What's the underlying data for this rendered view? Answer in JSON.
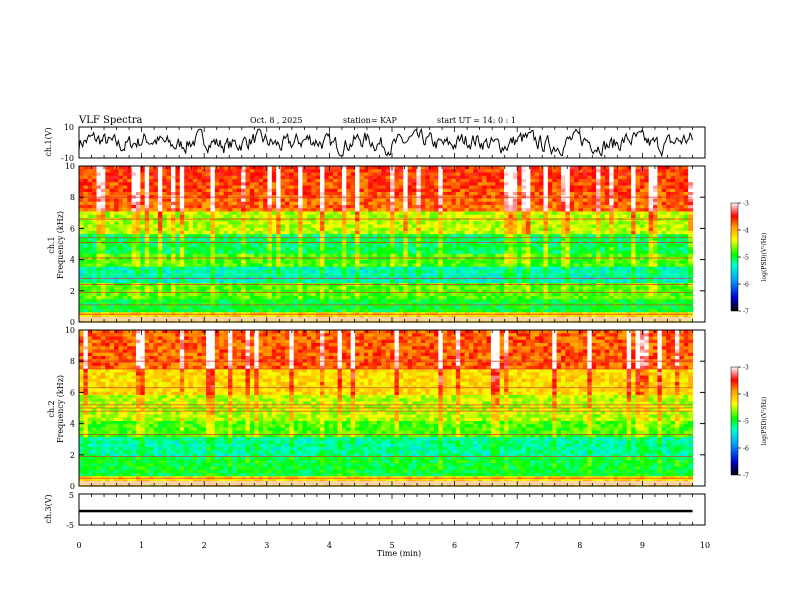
{
  "header": {
    "title": "VLF Spectra",
    "date": "Oct. 8 , 2025",
    "station": "station= KAP",
    "start_time": "start UT = 14: 0 : 1"
  },
  "colors": {
    "background": "#ffffff",
    "trace": "#000000",
    "colormap": [
      "#000000",
      "#0000cc",
      "#0099ff",
      "#00ffcc",
      "#00ff00",
      "#ffff00",
      "#ff9900",
      "#ff0000",
      "#ffffff"
    ]
  },
  "chart_data": [
    {
      "type": "line",
      "name": "ch1-waveform",
      "ylabel": "ch.1(V)",
      "ylim": [
        -10,
        10
      ],
      "yticks": [
        "10",
        "-10"
      ],
      "xlim": [
        0,
        10
      ],
      "data_end_min": 9.8,
      "description_values": "noisy waveform oscillating roughly between -8 and 8 V"
    },
    {
      "type": "heatmap",
      "name": "ch1-spectrogram",
      "ylabel_line1": "ch.1",
      "ylabel_line2": "Frequency (kHz)",
      "ylim": [
        0,
        10
      ],
      "yticks": [
        "0",
        "2",
        "4",
        "6",
        "8",
        "10"
      ],
      "xlim": [
        0,
        10
      ],
      "data_end_min": 9.8,
      "zlim": [
        -7,
        -3
      ],
      "colorbar_label": "log(PSD)(V²/Hz)",
      "colorbar_ticks": [
        "-3",
        "-4",
        "-5",
        "-6",
        "-7"
      ],
      "horizontal_lines_khz": [
        0.5,
        1.1,
        1.9,
        2.4,
        2.8,
        4.1,
        5.1,
        5.4,
        6.6,
        8.0
      ]
    },
    {
      "type": "heatmap",
      "name": "ch2-spectrogram",
      "ylabel_line1": "ch.2",
      "ylabel_line2": "Frequency (kHz)",
      "ylim": [
        0,
        10
      ],
      "yticks": [
        "0",
        "2",
        "4",
        "6",
        "8",
        "10"
      ],
      "xlim": [
        0,
        10
      ],
      "data_end_min": 9.8,
      "zlim": [
        -7,
        -3
      ],
      "colorbar_label": "log(PSD)(V²/Hz)",
      "colorbar_ticks": [
        "-3",
        "-4",
        "-5",
        "-6",
        "-7"
      ],
      "horizontal_lines_khz": [
        0.5,
        1.9,
        3.3,
        4.8,
        5.0,
        5.2,
        6.3,
        7.5,
        8.0
      ]
    },
    {
      "type": "line",
      "name": "ch3-waveform",
      "ylabel": "ch.3(V)",
      "ylim": [
        -5,
        5
      ],
      "yticks": [
        "5",
        "-5"
      ],
      "xlim": [
        0,
        10
      ],
      "xticks": [
        "0",
        "1",
        "2",
        "3",
        "4",
        "5",
        "6",
        "7",
        "8",
        "9",
        "10"
      ],
      "xlabel": "Time (min)",
      "data_end_min": 9.8,
      "level_v": -0.5,
      "band_half_width_v": 0.4
    }
  ]
}
